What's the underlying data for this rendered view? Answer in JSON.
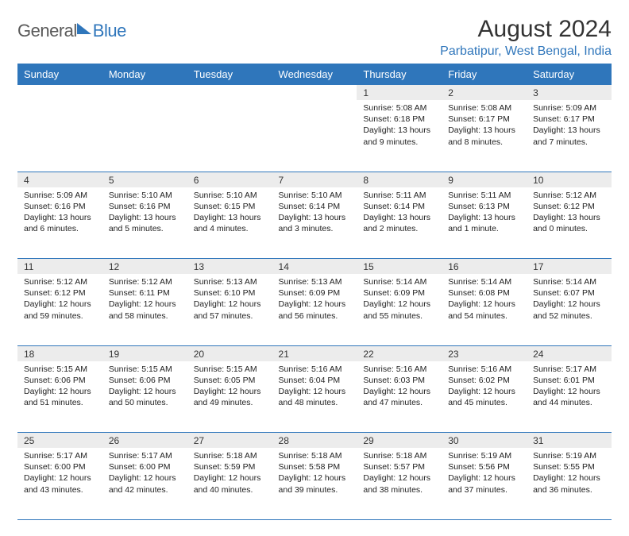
{
  "logo": {
    "text1": "General",
    "text2": "Blue"
  },
  "title": "August 2024",
  "location": "Parbatipur, West Bengal, India",
  "colors": {
    "accent": "#2f76bb",
    "header_bg": "#2f76bb",
    "daynum_bg": "#ececec"
  },
  "daysOfWeek": [
    "Sunday",
    "Monday",
    "Tuesday",
    "Wednesday",
    "Thursday",
    "Friday",
    "Saturday"
  ],
  "weeks": [
    [
      null,
      null,
      null,
      null,
      {
        "n": "1",
        "sr": "5:08 AM",
        "ss": "6:18 PM",
        "dl": "13 hours and 9 minutes."
      },
      {
        "n": "2",
        "sr": "5:08 AM",
        "ss": "6:17 PM",
        "dl": "13 hours and 8 minutes."
      },
      {
        "n": "3",
        "sr": "5:09 AM",
        "ss": "6:17 PM",
        "dl": "13 hours and 7 minutes."
      }
    ],
    [
      {
        "n": "4",
        "sr": "5:09 AM",
        "ss": "6:16 PM",
        "dl": "13 hours and 6 minutes."
      },
      {
        "n": "5",
        "sr": "5:10 AM",
        "ss": "6:16 PM",
        "dl": "13 hours and 5 minutes."
      },
      {
        "n": "6",
        "sr": "5:10 AM",
        "ss": "6:15 PM",
        "dl": "13 hours and 4 minutes."
      },
      {
        "n": "7",
        "sr": "5:10 AM",
        "ss": "6:14 PM",
        "dl": "13 hours and 3 minutes."
      },
      {
        "n": "8",
        "sr": "5:11 AM",
        "ss": "6:14 PM",
        "dl": "13 hours and 2 minutes."
      },
      {
        "n": "9",
        "sr": "5:11 AM",
        "ss": "6:13 PM",
        "dl": "13 hours and 1 minute."
      },
      {
        "n": "10",
        "sr": "5:12 AM",
        "ss": "6:12 PM",
        "dl": "13 hours and 0 minutes."
      }
    ],
    [
      {
        "n": "11",
        "sr": "5:12 AM",
        "ss": "6:12 PM",
        "dl": "12 hours and 59 minutes."
      },
      {
        "n": "12",
        "sr": "5:12 AM",
        "ss": "6:11 PM",
        "dl": "12 hours and 58 minutes."
      },
      {
        "n": "13",
        "sr": "5:13 AM",
        "ss": "6:10 PM",
        "dl": "12 hours and 57 minutes."
      },
      {
        "n": "14",
        "sr": "5:13 AM",
        "ss": "6:09 PM",
        "dl": "12 hours and 56 minutes."
      },
      {
        "n": "15",
        "sr": "5:14 AM",
        "ss": "6:09 PM",
        "dl": "12 hours and 55 minutes."
      },
      {
        "n": "16",
        "sr": "5:14 AM",
        "ss": "6:08 PM",
        "dl": "12 hours and 54 minutes."
      },
      {
        "n": "17",
        "sr": "5:14 AM",
        "ss": "6:07 PM",
        "dl": "12 hours and 52 minutes."
      }
    ],
    [
      {
        "n": "18",
        "sr": "5:15 AM",
        "ss": "6:06 PM",
        "dl": "12 hours and 51 minutes."
      },
      {
        "n": "19",
        "sr": "5:15 AM",
        "ss": "6:06 PM",
        "dl": "12 hours and 50 minutes."
      },
      {
        "n": "20",
        "sr": "5:15 AM",
        "ss": "6:05 PM",
        "dl": "12 hours and 49 minutes."
      },
      {
        "n": "21",
        "sr": "5:16 AM",
        "ss": "6:04 PM",
        "dl": "12 hours and 48 minutes."
      },
      {
        "n": "22",
        "sr": "5:16 AM",
        "ss": "6:03 PM",
        "dl": "12 hours and 47 minutes."
      },
      {
        "n": "23",
        "sr": "5:16 AM",
        "ss": "6:02 PM",
        "dl": "12 hours and 45 minutes."
      },
      {
        "n": "24",
        "sr": "5:17 AM",
        "ss": "6:01 PM",
        "dl": "12 hours and 44 minutes."
      }
    ],
    [
      {
        "n": "25",
        "sr": "5:17 AM",
        "ss": "6:00 PM",
        "dl": "12 hours and 43 minutes."
      },
      {
        "n": "26",
        "sr": "5:17 AM",
        "ss": "6:00 PM",
        "dl": "12 hours and 42 minutes."
      },
      {
        "n": "27",
        "sr": "5:18 AM",
        "ss": "5:59 PM",
        "dl": "12 hours and 40 minutes."
      },
      {
        "n": "28",
        "sr": "5:18 AM",
        "ss": "5:58 PM",
        "dl": "12 hours and 39 minutes."
      },
      {
        "n": "29",
        "sr": "5:18 AM",
        "ss": "5:57 PM",
        "dl": "12 hours and 38 minutes."
      },
      {
        "n": "30",
        "sr": "5:19 AM",
        "ss": "5:56 PM",
        "dl": "12 hours and 37 minutes."
      },
      {
        "n": "31",
        "sr": "5:19 AM",
        "ss": "5:55 PM",
        "dl": "12 hours and 36 minutes."
      }
    ]
  ],
  "labels": {
    "sunrise": "Sunrise: ",
    "sunset": "Sunset: ",
    "daylight": "Daylight: "
  }
}
